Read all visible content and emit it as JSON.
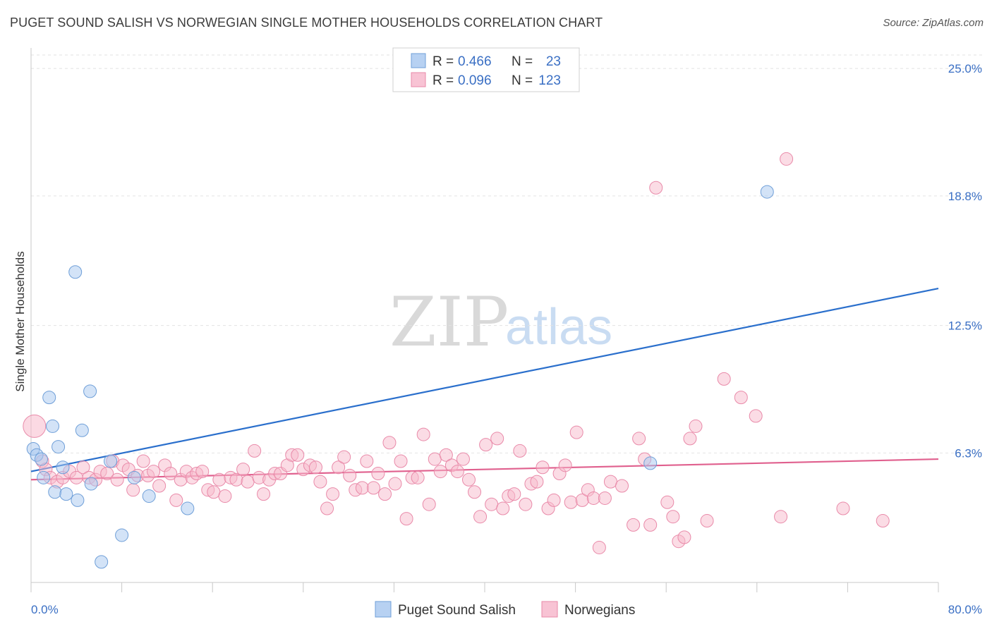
{
  "title": "PUGET SOUND SALISH VS NORWEGIAN SINGLE MOTHER HOUSEHOLDS CORRELATION CHART",
  "source": "Source: ZipAtlas.com",
  "watermark": {
    "zip": "ZIP",
    "atlas": "atlas"
  },
  "legend": {
    "rows": [
      {
        "r_label": "R = ",
        "r_value": "0.466",
        "n_label": "N = ",
        "n_value": "23"
      },
      {
        "r_label": "R = ",
        "r_value": "0.096",
        "n_label": "N = ",
        "n_value": "123"
      }
    ]
  },
  "chart_data": {
    "type": "scatter",
    "title": "PUGET SOUND SALISH VS NORWEGIAN SINGLE MOTHER HOUSEHOLDS CORRELATION CHART",
    "xlabel": "",
    "ylabel": "Single Mother Households",
    "xlim": [
      0,
      80
    ],
    "ylim": [
      0,
      26
    ],
    "x_tick_labels": [
      "0.0%",
      "80.0%"
    ],
    "y_ticks": [
      6.3,
      12.5,
      18.8,
      25.0
    ],
    "y_tick_labels": [
      "6.3%",
      "12.5%",
      "18.8%",
      "25.0%"
    ],
    "grid": true,
    "legend_position": "top-center",
    "series": [
      {
        "name": "Puget Sound Salish",
        "color": "#a8c8f0",
        "stroke": "#6f9fd8",
        "trend_color": "#2a6fcc",
        "trend": [
          [
            0,
            5.4
          ],
          [
            80,
            14.3
          ]
        ],
        "points": [
          [
            0.2,
            6.5
          ],
          [
            0.5,
            6.2
          ],
          [
            0.9,
            6.0
          ],
          [
            1.1,
            5.1
          ],
          [
            1.6,
            9.0
          ],
          [
            1.9,
            7.6
          ],
          [
            2.1,
            4.4
          ],
          [
            2.4,
            6.6
          ],
          [
            2.8,
            5.6
          ],
          [
            3.1,
            4.3
          ],
          [
            4.1,
            4.0
          ],
          [
            4.5,
            7.4
          ],
          [
            5.3,
            4.8
          ],
          [
            3.9,
            15.1
          ],
          [
            5.2,
            9.3
          ],
          [
            6.2,
            1.0
          ],
          [
            7.0,
            5.9
          ],
          [
            8.0,
            2.3
          ],
          [
            9.1,
            5.1
          ],
          [
            10.4,
            4.2
          ],
          [
            13.8,
            3.6
          ],
          [
            54.6,
            5.8
          ],
          [
            64.9,
            19.0
          ]
        ]
      },
      {
        "name": "Norwegians",
        "color": "#f7b9cc",
        "stroke": "#e98aa9",
        "trend_color": "#e0608e",
        "trend": [
          [
            0,
            5.0
          ],
          [
            80,
            6.0
          ]
        ],
        "points": [
          [
            0.3,
            7.6
          ],
          [
            1.0,
            5.9
          ],
          [
            1.3,
            5.5
          ],
          [
            1.7,
            5.1
          ],
          [
            2.3,
            4.9
          ],
          [
            2.8,
            5.1
          ],
          [
            3.4,
            5.4
          ],
          [
            4.0,
            5.1
          ],
          [
            4.6,
            5.6
          ],
          [
            5.1,
            5.1
          ],
          [
            5.7,
            5.0
          ],
          [
            6.1,
            5.4
          ],
          [
            6.7,
            5.3
          ],
          [
            7.2,
            5.9
          ],
          [
            7.6,
            5.0
          ],
          [
            8.1,
            5.7
          ],
          [
            8.6,
            5.5
          ],
          [
            9.0,
            4.5
          ],
          [
            9.4,
            5.2
          ],
          [
            9.9,
            5.9
          ],
          [
            10.3,
            5.2
          ],
          [
            10.8,
            5.4
          ],
          [
            11.3,
            4.7
          ],
          [
            11.8,
            5.7
          ],
          [
            12.3,
            5.3
          ],
          [
            12.8,
            4.0
          ],
          [
            13.2,
            5.0
          ],
          [
            13.7,
            5.4
          ],
          [
            14.2,
            5.1
          ],
          [
            14.6,
            5.3
          ],
          [
            15.1,
            5.4
          ],
          [
            15.6,
            4.5
          ],
          [
            16.1,
            4.4
          ],
          [
            16.6,
            5.0
          ],
          [
            17.1,
            4.2
          ],
          [
            17.6,
            5.1
          ],
          [
            18.1,
            5.0
          ],
          [
            18.7,
            5.5
          ],
          [
            19.1,
            4.9
          ],
          [
            19.7,
            6.4
          ],
          [
            20.1,
            5.1
          ],
          [
            20.5,
            4.3
          ],
          [
            21.0,
            5.0
          ],
          [
            21.5,
            5.3
          ],
          [
            22.0,
            5.3
          ],
          [
            22.6,
            5.7
          ],
          [
            23.0,
            6.2
          ],
          [
            23.5,
            6.2
          ],
          [
            24.0,
            5.5
          ],
          [
            24.6,
            5.7
          ],
          [
            25.1,
            5.6
          ],
          [
            25.5,
            4.9
          ],
          [
            26.1,
            3.6
          ],
          [
            26.6,
            4.3
          ],
          [
            27.1,
            5.6
          ],
          [
            27.6,
            6.1
          ],
          [
            28.1,
            5.2
          ],
          [
            28.6,
            4.5
          ],
          [
            29.2,
            4.6
          ],
          [
            29.6,
            5.9
          ],
          [
            30.2,
            4.6
          ],
          [
            30.6,
            5.3
          ],
          [
            31.2,
            4.3
          ],
          [
            31.6,
            6.8
          ],
          [
            32.1,
            4.8
          ],
          [
            32.6,
            5.9
          ],
          [
            33.1,
            3.1
          ],
          [
            33.6,
            5.1
          ],
          [
            34.1,
            5.1
          ],
          [
            34.6,
            7.2
          ],
          [
            35.1,
            3.8
          ],
          [
            35.6,
            6.0
          ],
          [
            36.1,
            5.4
          ],
          [
            36.6,
            6.2
          ],
          [
            37.1,
            5.7
          ],
          [
            37.6,
            5.4
          ],
          [
            38.1,
            6.0
          ],
          [
            38.6,
            5.0
          ],
          [
            39.1,
            4.4
          ],
          [
            39.6,
            3.2
          ],
          [
            40.1,
            6.7
          ],
          [
            40.6,
            3.8
          ],
          [
            41.1,
            7.0
          ],
          [
            41.6,
            3.6
          ],
          [
            42.1,
            4.2
          ],
          [
            42.6,
            4.3
          ],
          [
            43.1,
            6.4
          ],
          [
            43.6,
            3.8
          ],
          [
            44.1,
            4.8
          ],
          [
            44.6,
            4.9
          ],
          [
            45.1,
            5.6
          ],
          [
            45.6,
            3.6
          ],
          [
            46.1,
            4.0
          ],
          [
            46.6,
            5.3
          ],
          [
            47.1,
            5.7
          ],
          [
            47.6,
            3.9
          ],
          [
            48.1,
            7.3
          ],
          [
            48.6,
            4.0
          ],
          [
            49.1,
            4.5
          ],
          [
            49.6,
            4.1
          ],
          [
            50.1,
            1.7
          ],
          [
            50.6,
            4.1
          ],
          [
            51.1,
            4.9
          ],
          [
            52.1,
            4.7
          ],
          [
            53.1,
            2.8
          ],
          [
            53.6,
            7.0
          ],
          [
            54.1,
            6.0
          ],
          [
            54.6,
            2.8
          ],
          [
            55.1,
            19.2
          ],
          [
            56.1,
            3.9
          ],
          [
            56.6,
            3.2
          ],
          [
            57.1,
            2.0
          ],
          [
            57.6,
            2.2
          ],
          [
            58.1,
            7.0
          ],
          [
            58.6,
            7.6
          ],
          [
            59.6,
            3.0
          ],
          [
            61.1,
            9.9
          ],
          [
            62.6,
            9.0
          ],
          [
            63.9,
            8.1
          ],
          [
            66.1,
            3.2
          ],
          [
            66.6,
            20.6
          ],
          [
            71.6,
            3.6
          ],
          [
            75.1,
            3.0
          ]
        ]
      }
    ]
  }
}
